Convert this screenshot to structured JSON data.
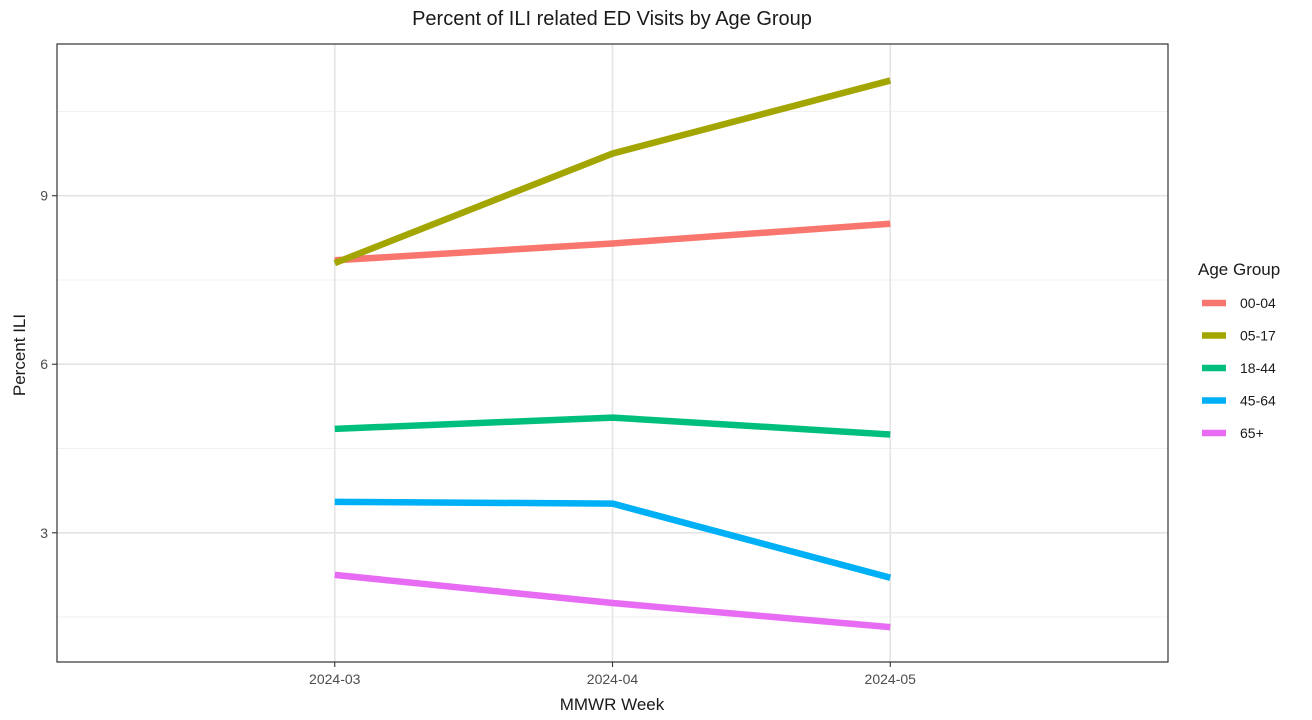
{
  "chart_data": {
    "type": "line",
    "title": "Percent of ILI related ED Visits by Age Group",
    "xlabel": "MMWR Week",
    "ylabel": "Percent ILI",
    "categories": [
      "2024-03",
      "2024-04",
      "2024-05"
    ],
    "ylim": [
      0.7,
      11.7
    ],
    "yticks": [
      3,
      6,
      9
    ],
    "grid": true,
    "legend": {
      "title": "Age Group",
      "placement": "right"
    },
    "series": [
      {
        "name": "00-04",
        "color": "#F8766D",
        "values": [
          7.85,
          8.15,
          8.5
        ]
      },
      {
        "name": "05-17",
        "color": "#A3A500",
        "values": [
          7.8,
          9.75,
          11.05
        ]
      },
      {
        "name": "18-44",
        "color": "#00BF7D",
        "values": [
          4.85,
          5.05,
          4.75
        ]
      },
      {
        "name": "45-64",
        "color": "#00B0F6",
        "values": [
          3.55,
          3.52,
          2.2
        ]
      },
      {
        "name": "65+",
        "color": "#E76BF3",
        "values": [
          2.25,
          1.75,
          1.32
        ]
      }
    ]
  }
}
